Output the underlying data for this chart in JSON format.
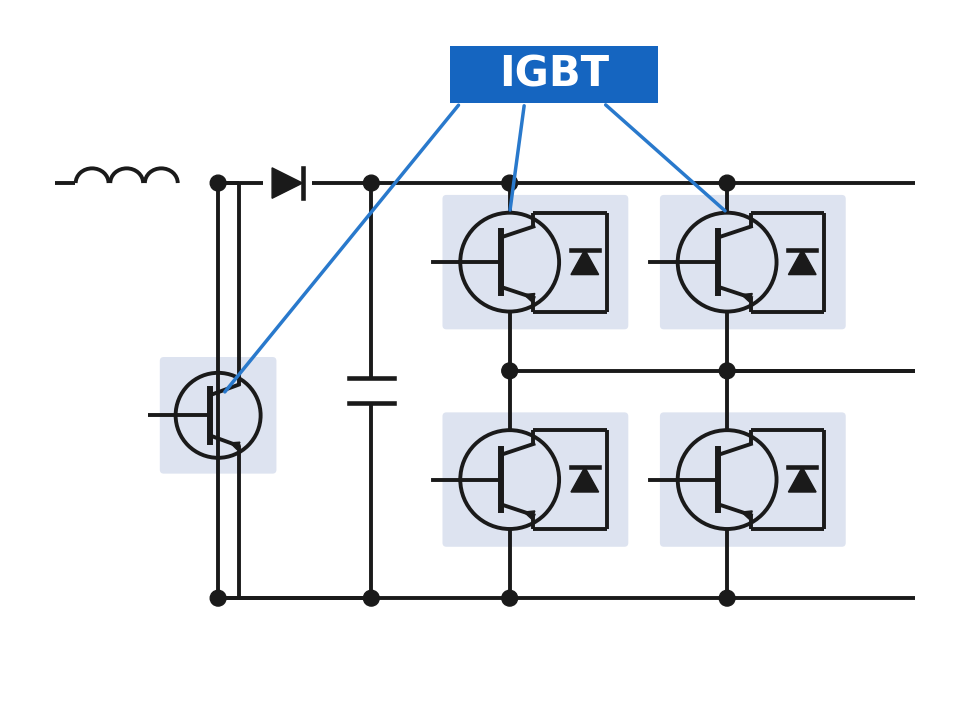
{
  "title": "IGBT",
  "title_bg": "#1565c0",
  "title_color": "#ffffff",
  "line_color": "#1a1a1a",
  "igbt_bg": "#dde3f0",
  "blue_line_color": "#2979cc",
  "lw": 2.8,
  "fig_bg": "#ffffff"
}
